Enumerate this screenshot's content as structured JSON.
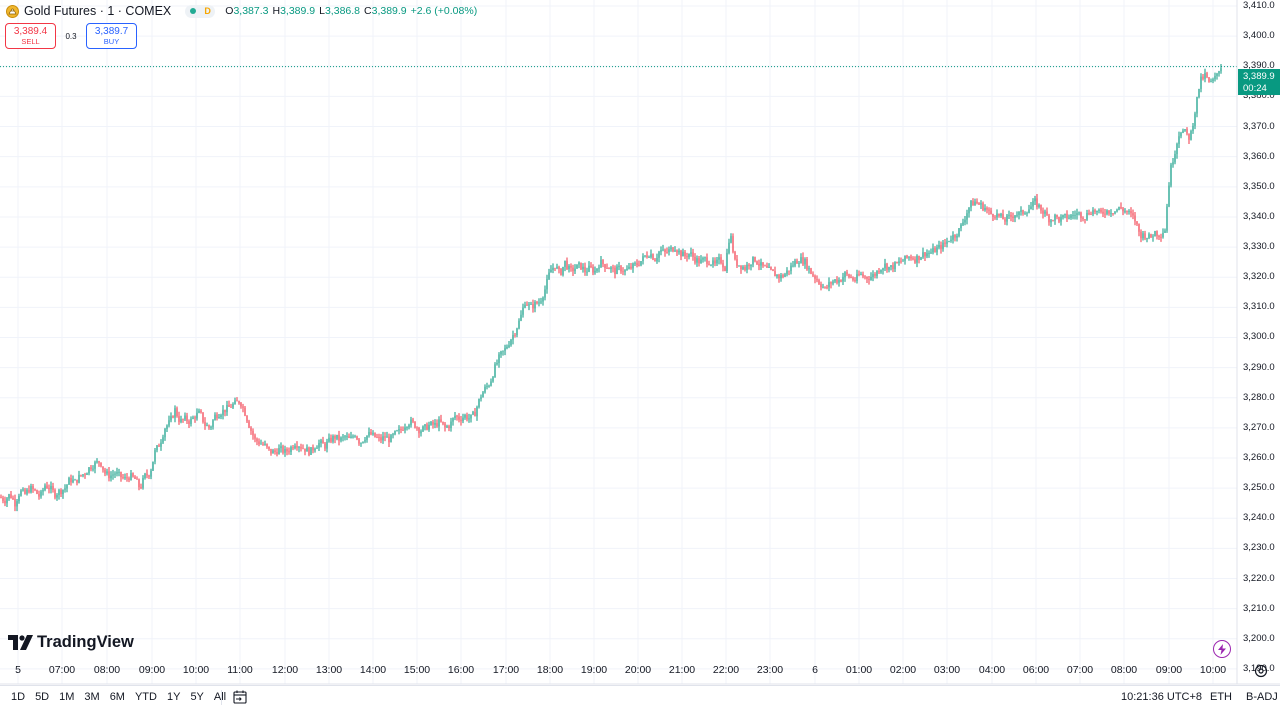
{
  "header": {
    "title": "Gold Futures · 1 · COMEX",
    "status_letter": "D",
    "ohlc": {
      "o_label": "O",
      "o": "3,387.3",
      "h_label": "H",
      "h": "3,389.9",
      "l_label": "L",
      "l": "3,386.8",
      "c_label": "C",
      "c": "3,389.9",
      "change": "+2.6 (+0.08%)"
    },
    "icons": [
      "gold-coin-icon",
      "market-open-dot-icon"
    ]
  },
  "trade": {
    "sell_price": "3,389.4",
    "sell_label": "SELL",
    "spread": "0.3",
    "buy_price": "3,389.7",
    "buy_label": "BUY"
  },
  "price_axis": {
    "ticks": [
      "3,410.0",
      "3,400.0",
      "3,390.0",
      "3,380.0",
      "3,370.0",
      "3,360.0",
      "3,350.0",
      "3,340.0",
      "3,330.0",
      "3,320.0",
      "3,310.0",
      "3,300.0",
      "3,290.0",
      "3,280.0",
      "3,270.0",
      "3,260.0",
      "3,250.0",
      "3,240.0",
      "3,230.0",
      "3,220.0",
      "3,210.0",
      "3,200.0",
      "3,190.0"
    ],
    "last_price": "3,389.9",
    "countdown": "00:24"
  },
  "time_axis": {
    "ticks": [
      "5",
      "07:00",
      "08:00",
      "09:00",
      "10:00",
      "11:00",
      "12:00",
      "13:00",
      "14:00",
      "15:00",
      "16:00",
      "17:00",
      "18:00",
      "19:00",
      "20:00",
      "21:00",
      "22:00",
      "23:00",
      "6",
      "01:00",
      "02:00",
      "03:00",
      "04:00",
      "06:00",
      "07:00",
      "08:00",
      "09:00",
      "10:00"
    ]
  },
  "branding": {
    "logo_text": "TradingView"
  },
  "bottom_bar": {
    "ranges": [
      "1D",
      "5D",
      "1M",
      "3M",
      "6M",
      "YTD",
      "1Y",
      "5Y",
      "All"
    ],
    "clock": "10:21:36 UTC+8",
    "session": "ETH",
    "adjustment": "B-ADJ"
  },
  "colors": {
    "up": "#089981",
    "down": "#f23645",
    "grid": "#f0f3fa",
    "price_line": "#089981",
    "sell": "#f23645",
    "buy": "#2962ff"
  },
  "chart_data": {
    "type": "candlestick",
    "symbol": "Gold Futures",
    "interval": "1 minute",
    "y_range": [
      3185,
      3412
    ],
    "last_price": 3389.9,
    "x_labels": [
      "5",
      "07:00",
      "08:00",
      "09:00",
      "10:00",
      "11:00",
      "12:00",
      "13:00",
      "14:00",
      "15:00",
      "16:00",
      "17:00",
      "18:00",
      "19:00",
      "20:00",
      "21:00",
      "22:00",
      "23:00",
      "6",
      "01:00",
      "02:00",
      "03:00",
      "04:00",
      "06:00",
      "07:00",
      "08:00",
      "09:00",
      "10:00"
    ],
    "price_path": [
      [
        0,
        3247
      ],
      [
        5,
        3246
      ],
      [
        10,
        3248
      ],
      [
        15,
        3245
      ],
      [
        20,
        3249
      ],
      [
        25,
        3248
      ],
      [
        30,
        3250
      ],
      [
        35,
        3249
      ],
      [
        40,
        3247
      ],
      [
        45,
        3251
      ],
      [
        50,
        3250
      ],
      [
        55,
        3248
      ],
      [
        60,
        3249
      ],
      [
        65,
        3250
      ],
      [
        70,
        3253
      ],
      [
        75,
        3252
      ],
      [
        80,
        3254
      ],
      [
        85,
        3255
      ],
      [
        90,
        3257
      ],
      [
        95,
        3258
      ],
      [
        100,
        3259
      ],
      [
        105,
        3255
      ],
      [
        110,
        3254
      ],
      [
        115,
        3255
      ],
      [
        120,
        3254
      ],
      [
        125,
        3253
      ],
      [
        130,
        3254
      ],
      [
        135,
        3253
      ],
      [
        140,
        3250
      ],
      [
        145,
        3254
      ],
      [
        150,
        3255
      ],
      [
        155,
        3262
      ],
      [
        160,
        3265
      ],
      [
        165,
        3270
      ],
      [
        170,
        3272
      ],
      [
        175,
        3276
      ],
      [
        180,
        3272
      ],
      [
        185,
        3273
      ],
      [
        190,
        3272
      ],
      [
        195,
        3274
      ],
      [
        200,
        3275
      ],
      [
        205,
        3271
      ],
      [
        210,
        3270
      ],
      [
        215,
        3274
      ],
      [
        220,
        3275
      ],
      [
        225,
        3276
      ],
      [
        230,
        3277
      ],
      [
        235,
        3278
      ],
      [
        240,
        3279
      ],
      [
        245,
        3275
      ],
      [
        250,
        3270
      ],
      [
        255,
        3266
      ],
      [
        260,
        3265
      ],
      [
        265,
        3264
      ],
      [
        270,
        3262
      ],
      [
        275,
        3262
      ],
      [
        280,
        3263
      ],
      [
        285,
        3262
      ],
      [
        290,
        3263
      ],
      [
        295,
        3265
      ],
      [
        300,
        3264
      ],
      [
        305,
        3263
      ],
      [
        310,
        3262
      ],
      [
        315,
        3264
      ],
      [
        320,
        3265
      ],
      [
        325,
        3264
      ],
      [
        330,
        3266
      ],
      [
        335,
        3267
      ],
      [
        340,
        3266
      ],
      [
        345,
        3267
      ],
      [
        350,
        3266
      ],
      [
        355,
        3268
      ],
      [
        360,
        3265
      ],
      [
        365,
        3267
      ],
      [
        370,
        3268
      ],
      [
        375,
        3267
      ],
      [
        380,
        3266
      ],
      [
        385,
        3267
      ],
      [
        390,
        3266
      ],
      [
        395,
        3268
      ],
      [
        400,
        3269
      ],
      [
        405,
        3271
      ],
      [
        410,
        3272
      ],
      [
        415,
        3271
      ],
      [
        420,
        3269
      ],
      [
        425,
        3270
      ],
      [
        430,
        3271
      ],
      [
        435,
        3271
      ],
      [
        440,
        3272
      ],
      [
        445,
        3270
      ],
      [
        450,
        3271
      ],
      [
        455,
        3274
      ],
      [
        460,
        3273
      ],
      [
        465,
        3274
      ],
      [
        470,
        3273
      ],
      [
        475,
        3275
      ],
      [
        480,
        3280
      ],
      [
        485,
        3283
      ],
      [
        490,
        3285
      ],
      [
        495,
        3290
      ],
      [
        500,
        3294
      ],
      [
        505,
        3296
      ],
      [
        510,
        3299
      ],
      [
        515,
        3302
      ],
      [
        520,
        3306
      ],
      [
        525,
        3312
      ],
      [
        530,
        3310
      ],
      [
        535,
        3311
      ],
      [
        540,
        3312
      ],
      [
        545,
        3316
      ],
      [
        550,
        3322
      ],
      [
        555,
        3324
      ],
      [
        560,
        3321
      ],
      [
        565,
        3325
      ],
      [
        570,
        3322
      ],
      [
        575,
        3323
      ],
      [
        580,
        3324
      ],
      [
        585,
        3322
      ],
      [
        590,
        3323
      ],
      [
        595,
        3322
      ],
      [
        600,
        3325
      ],
      [
        605,
        3324
      ],
      [
        610,
        3323
      ],
      [
        615,
        3322
      ],
      [
        620,
        3323
      ],
      [
        625,
        3322
      ],
      [
        630,
        3323
      ],
      [
        635,
        3324
      ],
      [
        640,
        3325
      ],
      [
        645,
        3327
      ],
      [
        650,
        3328
      ],
      [
        655,
        3326
      ],
      [
        660,
        3329
      ],
      [
        665,
        3328
      ],
      [
        670,
        3329
      ],
      [
        675,
        3330
      ],
      [
        680,
        3328
      ],
      [
        685,
        3327
      ],
      [
        690,
        3328
      ],
      [
        695,
        3326
      ],
      [
        700,
        3325
      ],
      [
        705,
        3326
      ],
      [
        710,
        3325
      ],
      [
        715,
        3324
      ],
      [
        720,
        3326
      ],
      [
        725,
        3323
      ],
      [
        730,
        3335
      ],
      [
        735,
        3325
      ],
      [
        740,
        3324
      ],
      [
        745,
        3323
      ],
      [
        750,
        3325
      ],
      [
        755,
        3326
      ],
      [
        760,
        3324
      ],
      [
        765,
        3323
      ],
      [
        770,
        3322
      ],
      [
        775,
        3321
      ],
      [
        780,
        3320
      ],
      [
        785,
        3321
      ],
      [
        790,
        3323
      ],
      [
        795,
        3325
      ],
      [
        800,
        3326
      ],
      [
        805,
        3325
      ],
      [
        810,
        3322
      ],
      [
        815,
        3320
      ],
      [
        820,
        3318
      ],
      [
        825,
        3316
      ],
      [
        830,
        3318
      ],
      [
        835,
        3319
      ],
      [
        840,
        3319
      ],
      [
        845,
        3321
      ],
      [
        850,
        3320
      ],
      [
        855,
        3319
      ],
      [
        860,
        3321
      ],
      [
        865,
        3320
      ],
      [
        870,
        3320
      ],
      [
        875,
        3321
      ],
      [
        880,
        3323
      ],
      [
        885,
        3324
      ],
      [
        890,
        3323
      ],
      [
        895,
        3324
      ],
      [
        900,
        3325
      ],
      [
        905,
        3326
      ],
      [
        910,
        3327
      ],
      [
        915,
        3326
      ],
      [
        920,
        3327
      ],
      [
        925,
        3328
      ],
      [
        930,
        3328
      ],
      [
        935,
        3329
      ],
      [
        940,
        3330
      ],
      [
        945,
        3331
      ],
      [
        950,
        3333
      ],
      [
        955,
        3334
      ],
      [
        960,
        3336
      ],
      [
        965,
        3340
      ],
      [
        970,
        3344
      ],
      [
        975,
        3345
      ],
      [
        980,
        3344
      ],
      [
        985,
        3343
      ],
      [
        990,
        3341
      ],
      [
        995,
        3341
      ],
      [
        1000,
        3340
      ],
      [
        1005,
        3339
      ],
      [
        1010,
        3340
      ],
      [
        1015,
        3341
      ],
      [
        1020,
        3341
      ],
      [
        1025,
        3342
      ],
      [
        1030,
        3343
      ],
      [
        1035,
        3345
      ],
      [
        1040,
        3343
      ],
      [
        1045,
        3341
      ],
      [
        1050,
        3339
      ],
      [
        1055,
        3340
      ],
      [
        1060,
        3339
      ],
      [
        1065,
        3340
      ],
      [
        1070,
        3340
      ],
      [
        1075,
        3341
      ],
      [
        1080,
        3341
      ],
      [
        1085,
        3340
      ],
      [
        1090,
        3342
      ],
      [
        1095,
        3342
      ],
      [
        1100,
        3341
      ],
      [
        1105,
        3342
      ],
      [
        1110,
        3342
      ],
      [
        1115,
        3342
      ],
      [
        1120,
        3343
      ],
      [
        1125,
        3342
      ],
      [
        1130,
        3341
      ],
      [
        1135,
        3339
      ],
      [
        1140,
        3334
      ],
      [
        1145,
        3334
      ],
      [
        1150,
        3333
      ],
      [
        1155,
        3335
      ],
      [
        1160,
        3334
      ],
      [
        1165,
        3336
      ],
      [
        1170,
        3355
      ],
      [
        1175,
        3362
      ],
      [
        1180,
        3369
      ],
      [
        1185,
        3368
      ],
      [
        1190,
        3366
      ],
      [
        1195,
        3375
      ],
      [
        1200,
        3385
      ],
      [
        1205,
        3387
      ],
      [
        1210,
        3384
      ],
      [
        1215,
        3386
      ],
      [
        1220,
        3389.9
      ]
    ]
  }
}
